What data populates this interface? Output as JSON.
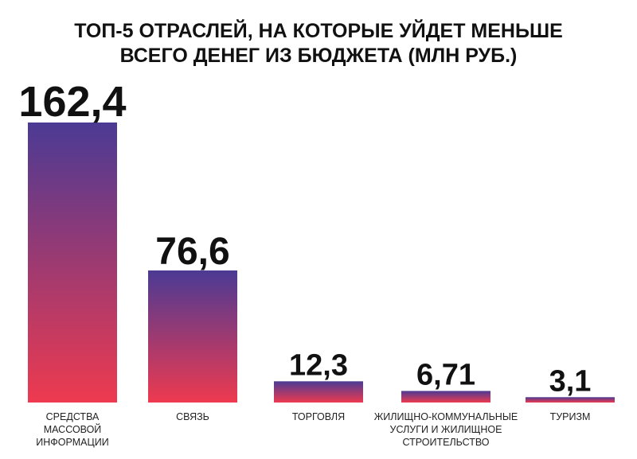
{
  "chart_data": {
    "type": "bar",
    "title_lines": [
      "ТОП-5 ОТРАСЛЕЙ, НА КОТОРЫЕ УЙДЕТ МЕНЬШЕ",
      "ВСЕГО ДЕНЕГ ИЗ БЮДЖЕТА (МЛН РУБ.)"
    ],
    "categories": [
      [
        "СРЕДСТВА",
        "МАССОВОЙ",
        "ИНФОРМАЦИИ"
      ],
      [
        "СВЯЗЬ"
      ],
      [
        "ТОРГОВЛЯ"
      ],
      [
        "ЖИЛИЩНО-КОММУНАЛЬНЫЕ",
        "УСЛУГИ И ЖИЛИЩНОЕ",
        "СТРОИТЕЛЬСТВО"
      ],
      [
        "ТУРИЗМ"
      ]
    ],
    "values": [
      162.4,
      76.6,
      12.3,
      6.71,
      3.1
    ],
    "value_labels": [
      "162,4",
      "76,6",
      "12,3",
      "6,71",
      "3,1"
    ],
    "colors": {
      "bar_top": "#4b3a94",
      "bar_bottom": "#ee3a4f"
    },
    "grid": false,
    "legend": "none"
  }
}
